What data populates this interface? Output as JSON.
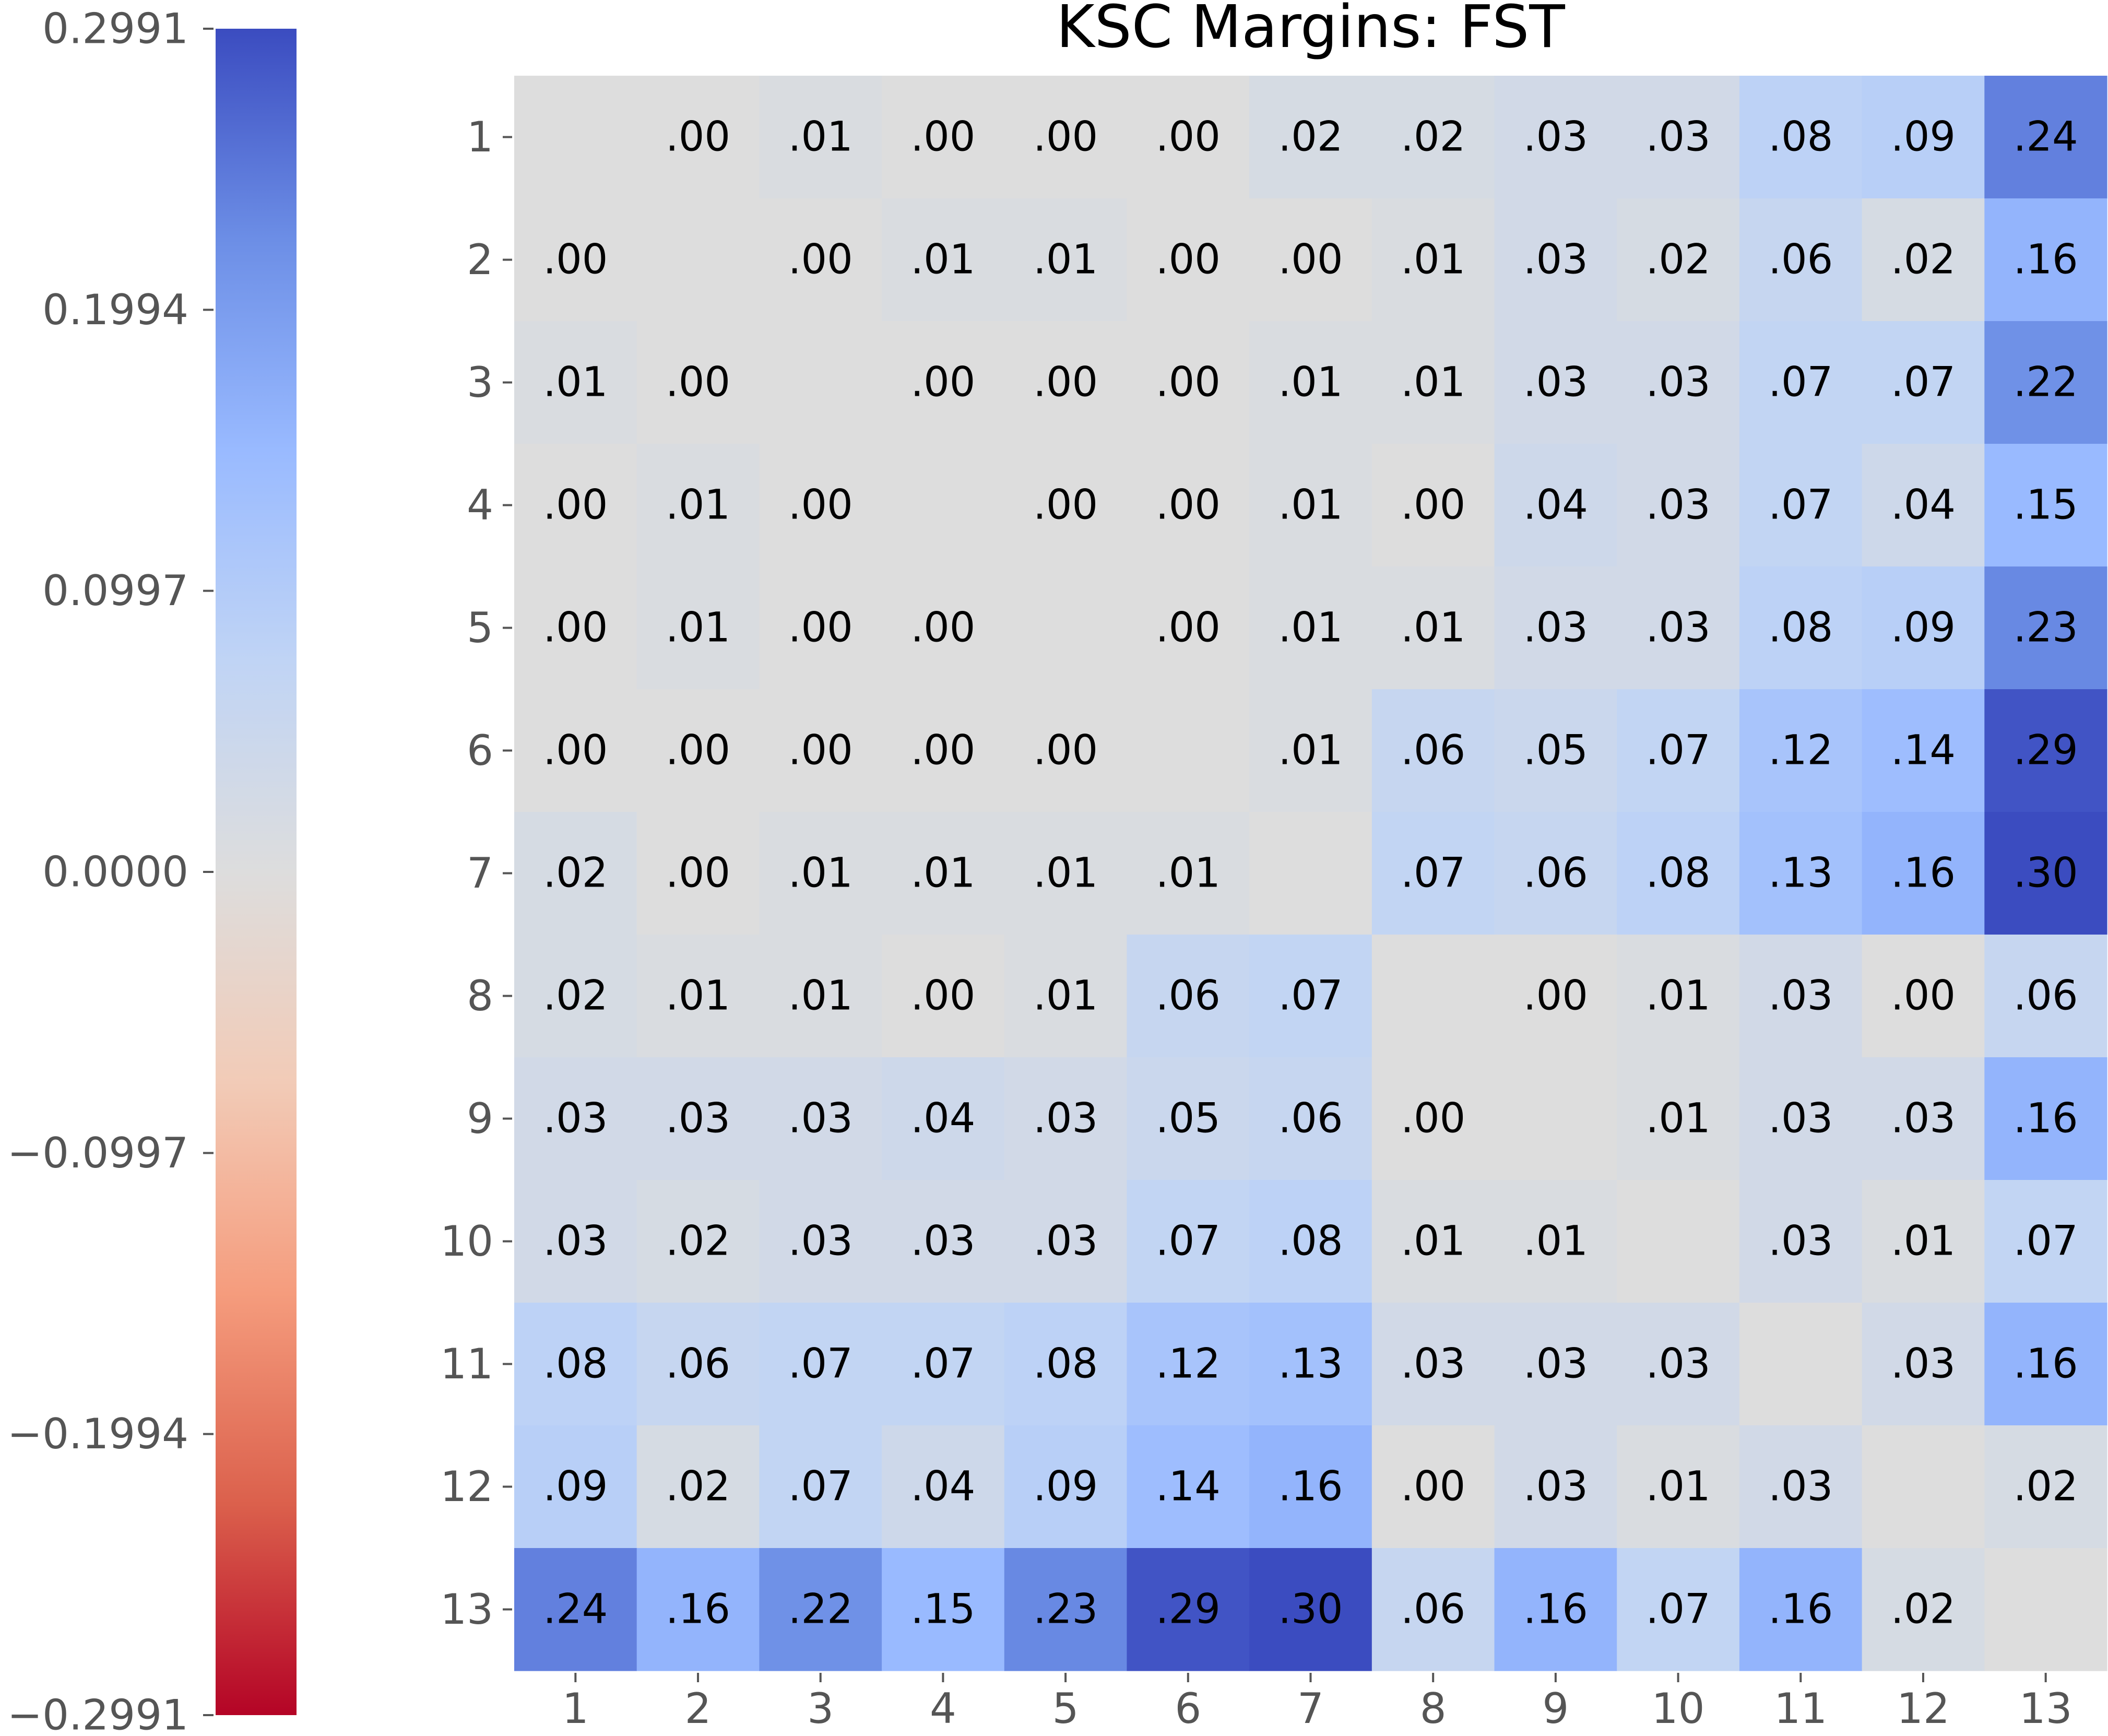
{
  "chart_data": {
    "type": "heatmap",
    "title": "KSC Margins: FST",
    "x_categories": [
      "1",
      "2",
      "3",
      "4",
      "5",
      "6",
      "7",
      "8",
      "9",
      "10",
      "11",
      "12",
      "13"
    ],
    "y_categories": [
      "1",
      "2",
      "3",
      "4",
      "5",
      "6",
      "7",
      "8",
      "9",
      "10",
      "11",
      "12",
      "13"
    ],
    "values": [
      [
        null,
        0.0,
        0.01,
        0.0,
        0.0,
        0.0,
        0.02,
        0.02,
        0.03,
        0.03,
        0.08,
        0.09,
        0.24
      ],
      [
        0.0,
        null,
        0.0,
        0.01,
        0.01,
        0.0,
        0.0,
        0.01,
        0.03,
        0.02,
        0.06,
        0.02,
        0.16
      ],
      [
        0.01,
        0.0,
        null,
        0.0,
        0.0,
        0.0,
        0.01,
        0.01,
        0.03,
        0.03,
        0.07,
        0.07,
        0.22
      ],
      [
        0.0,
        0.01,
        0.0,
        null,
        0.0,
        0.0,
        0.01,
        0.0,
        0.04,
        0.03,
        0.07,
        0.04,
        0.15
      ],
      [
        0.0,
        0.01,
        0.0,
        0.0,
        null,
        0.0,
        0.01,
        0.01,
        0.03,
        0.03,
        0.08,
        0.09,
        0.23
      ],
      [
        0.0,
        0.0,
        0.0,
        0.0,
        0.0,
        null,
        0.01,
        0.06,
        0.05,
        0.07,
        0.12,
        0.14,
        0.29
      ],
      [
        0.02,
        0.0,
        0.01,
        0.01,
        0.01,
        0.01,
        null,
        0.07,
        0.06,
        0.08,
        0.13,
        0.16,
        0.3
      ],
      [
        0.02,
        0.01,
        0.01,
        0.0,
        0.01,
        0.06,
        0.07,
        null,
        0.0,
        0.01,
        0.03,
        0.0,
        0.06
      ],
      [
        0.03,
        0.03,
        0.03,
        0.04,
        0.03,
        0.05,
        0.06,
        0.0,
        null,
        0.01,
        0.03,
        0.03,
        0.16
      ],
      [
        0.03,
        0.02,
        0.03,
        0.03,
        0.03,
        0.07,
        0.08,
        0.01,
        0.01,
        null,
        0.03,
        0.01,
        0.07
      ],
      [
        0.08,
        0.06,
        0.07,
        0.07,
        0.08,
        0.12,
        0.13,
        0.03,
        0.03,
        0.03,
        null,
        0.03,
        0.16
      ],
      [
        0.09,
        0.02,
        0.07,
        0.04,
        0.09,
        0.14,
        0.16,
        0.0,
        0.03,
        0.01,
        0.03,
        null,
        0.02
      ],
      [
        0.24,
        0.16,
        0.22,
        0.15,
        0.23,
        0.29,
        0.3,
        0.06,
        0.16,
        0.07,
        0.16,
        0.02,
        null
      ]
    ],
    "labels": [
      [
        "",
        ".00",
        ".01",
        ".00",
        ".00",
        ".00",
        ".02",
        ".02",
        ".03",
        ".03",
        ".08",
        ".09",
        ".24"
      ],
      [
        ".00",
        "",
        ".00",
        ".01",
        ".01",
        ".00",
        ".00",
        ".01",
        ".03",
        ".02",
        ".06",
        ".02",
        ".16"
      ],
      [
        ".01",
        ".00",
        "",
        ".00",
        ".00",
        ".00",
        ".01",
        ".01",
        ".03",
        ".03",
        ".07",
        ".07",
        ".22"
      ],
      [
        ".00",
        ".01",
        ".00",
        "",
        ".00",
        ".00",
        ".01",
        ".00",
        ".04",
        ".03",
        ".07",
        ".04",
        ".15"
      ],
      [
        ".00",
        ".01",
        ".00",
        ".00",
        "",
        ".00",
        ".01",
        ".01",
        ".03",
        ".03",
        ".08",
        ".09",
        ".23"
      ],
      [
        ".00",
        ".00",
        ".00",
        ".00",
        ".00",
        "",
        ".01",
        ".06",
        ".05",
        ".07",
        ".12",
        ".14",
        ".29"
      ],
      [
        ".02",
        ".00",
        ".01",
        ".01",
        ".01",
        ".01",
        "",
        ".07",
        ".06",
        ".08",
        ".13",
        ".16",
        ".30"
      ],
      [
        ".02",
        ".01",
        ".01",
        ".00",
        ".01",
        ".06",
        ".07",
        "",
        ".00",
        ".01",
        ".03",
        ".00",
        ".06"
      ],
      [
        ".03",
        ".03",
        ".03",
        ".04",
        ".03",
        ".05",
        ".06",
        ".00",
        "",
        ".01",
        ".03",
        ".03",
        ".16"
      ],
      [
        ".03",
        ".02",
        ".03",
        ".03",
        ".03",
        ".07",
        ".08",
        ".01",
        ".01",
        "",
        ".03",
        ".01",
        ".07"
      ],
      [
        ".08",
        ".06",
        ".07",
        ".07",
        ".08",
        ".12",
        ".13",
        ".03",
        ".03",
        ".03",
        "",
        ".03",
        ".16"
      ],
      [
        ".09",
        ".02",
        ".07",
        ".04",
        ".09",
        ".14",
        ".16",
        ".00",
        ".03",
        ".01",
        ".03",
        "",
        ".02"
      ],
      [
        ".24",
        ".16",
        ".22",
        ".15",
        ".23",
        ".29",
        ".30",
        ".06",
        ".16",
        ".07",
        ".16",
        ".02",
        ""
      ]
    ],
    "colorscale": "coolwarm",
    "colorbar": {
      "position": "left",
      "range": [
        -0.2991,
        0.2991
      ],
      "ticks": [
        0.2991,
        0.1994,
        0.0997,
        0.0,
        -0.0997,
        -0.1994,
        -0.2991
      ],
      "tick_labels": [
        "0.2991",
        "0.1994",
        "0.0997",
        "0.0000",
        "−0.0997",
        "−0.1994",
        "−0.2991"
      ]
    },
    "grid": false
  }
}
